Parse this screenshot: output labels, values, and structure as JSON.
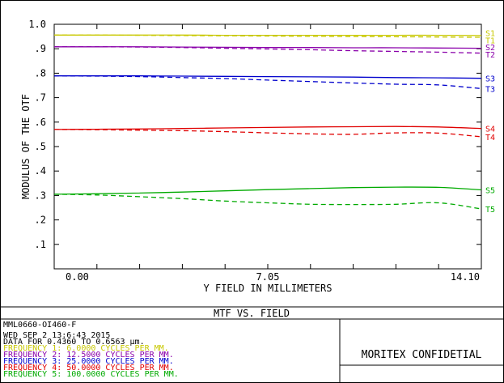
{
  "chart_data": {
    "type": "line",
    "title": "MTF VS. FIELD",
    "xlabel": "Y FIELD IN MILLIMETERS",
    "ylabel": "MODULUS OF THE OTF",
    "xlim": [
      0,
      14.1
    ],
    "ylim": [
      0,
      1.0
    ],
    "x_ticks": [
      "0.00",
      "7.05",
      "14.10"
    ],
    "y_ticks": [
      ".1",
      ".2",
      ".3",
      ".4",
      ".5",
      ".6",
      ".7",
      ".8",
      ".9",
      "1.0"
    ],
    "grid": false,
    "x": [
      0,
      1.41,
      2.82,
      4.23,
      5.64,
      7.05,
      8.46,
      9.87,
      11.28,
      12.69,
      14.1
    ],
    "series": [
      {
        "name": "S1",
        "color": "#c8c800",
        "dash": false,
        "values": [
          0.956,
          0.956,
          0.956,
          0.956,
          0.955,
          0.955,
          0.955,
          0.955,
          0.955,
          0.955,
          0.954
        ]
      },
      {
        "name": "T1",
        "color": "#c8c800",
        "dash": true,
        "values": [
          0.956,
          0.956,
          0.955,
          0.954,
          0.953,
          0.952,
          0.951,
          0.95,
          0.949,
          0.948,
          0.947
        ]
      },
      {
        "name": "S2",
        "color": "#8a00aa",
        "dash": false,
        "values": [
          0.908,
          0.908,
          0.908,
          0.907,
          0.906,
          0.905,
          0.905,
          0.904,
          0.904,
          0.903,
          0.902
        ]
      },
      {
        "name": "T2",
        "color": "#8a00aa",
        "dash": true,
        "values": [
          0.908,
          0.908,
          0.907,
          0.905,
          0.902,
          0.899,
          0.896,
          0.892,
          0.889,
          0.886,
          0.882
        ]
      },
      {
        "name": "S3",
        "color": "#0000cc",
        "dash": false,
        "values": [
          0.789,
          0.789,
          0.789,
          0.788,
          0.787,
          0.786,
          0.785,
          0.784,
          0.782,
          0.781,
          0.779
        ]
      },
      {
        "name": "T3",
        "color": "#0000cc",
        "dash": true,
        "values": [
          0.789,
          0.788,
          0.786,
          0.782,
          0.778,
          0.772,
          0.766,
          0.76,
          0.755,
          0.752,
          0.737
        ]
      },
      {
        "name": "S4",
        "color": "#e00000",
        "dash": false,
        "values": [
          0.57,
          0.571,
          0.572,
          0.574,
          0.576,
          0.578,
          0.58,
          0.581,
          0.582,
          0.58,
          0.574
        ]
      },
      {
        "name": "T4",
        "color": "#e00000",
        "dash": true,
        "values": [
          0.57,
          0.569,
          0.567,
          0.565,
          0.561,
          0.556,
          0.552,
          0.55,
          0.556,
          0.555,
          0.54
        ]
      },
      {
        "name": "S5",
        "color": "#00aa00",
        "dash": false,
        "values": [
          0.305,
          0.307,
          0.31,
          0.314,
          0.319,
          0.324,
          0.328,
          0.332,
          0.334,
          0.333,
          0.323
        ]
      },
      {
        "name": "T5",
        "color": "#00aa00",
        "dash": true,
        "values": [
          0.305,
          0.302,
          0.295,
          0.287,
          0.277,
          0.27,
          0.264,
          0.263,
          0.264,
          0.27,
          0.245
        ]
      }
    ]
  },
  "info": {
    "lens_id": "MML0660-OI460-F",
    "date_line": "WED SEP 2 13:6:43 2015",
    "data_line": "DATA FOR 0.4360 TO 0.6563 µm.",
    "frequencies": [
      {
        "label": "FREQUENCY 1:   6.0000 CYCLES PER MM.",
        "color": "#c8c800"
      },
      {
        "label": "FREQUENCY 2:  12.5000 CYCLES PER MM.",
        "color": "#8a00aa"
      },
      {
        "label": "FREQUENCY 3:  25.0000 CYCLES PER MM.",
        "color": "#0000cc"
      },
      {
        "label": "FREQUENCY 4:  50.0000 CYCLES PER MM.",
        "color": "#e00000"
      },
      {
        "label": "FREQUENCY 5: 100.0000 CYCLES PER MM.",
        "color": "#00aa00"
      }
    ],
    "confidential": "MORITEX CONFIDETIAL"
  }
}
